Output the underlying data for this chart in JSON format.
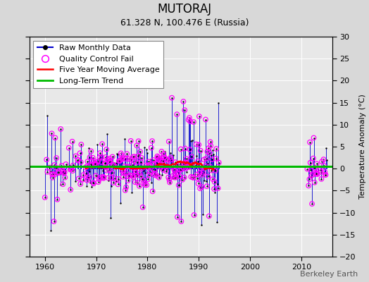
{
  "title": "MUTORAJ",
  "subtitle": "61.328 N, 100.476 E (Russia)",
  "ylabel": "Temperature Anomaly (°C)",
  "watermark": "Berkeley Earth",
  "ylim": [
    -20,
    30
  ],
  "xlim": [
    1957,
    2016
  ],
  "yticks": [
    -20,
    -15,
    -10,
    -5,
    0,
    5,
    10,
    15,
    20,
    25,
    30
  ],
  "xticks": [
    1960,
    1970,
    1980,
    1990,
    2000,
    2010
  ],
  "raw_color": "#0000cc",
  "raw_dot_color": "#000000",
  "qc_color": "#ff00ff",
  "moving_avg_color": "#ff0000",
  "trend_color": "#00bb00",
  "background_color": "#d8d8d8",
  "plot_bg_color": "#e8e8e8",
  "grid_color": "#ffffff",
  "title_fontsize": 12,
  "subtitle_fontsize": 9,
  "legend_fontsize": 8,
  "watermark_fontsize": 8,
  "seed": 42
}
